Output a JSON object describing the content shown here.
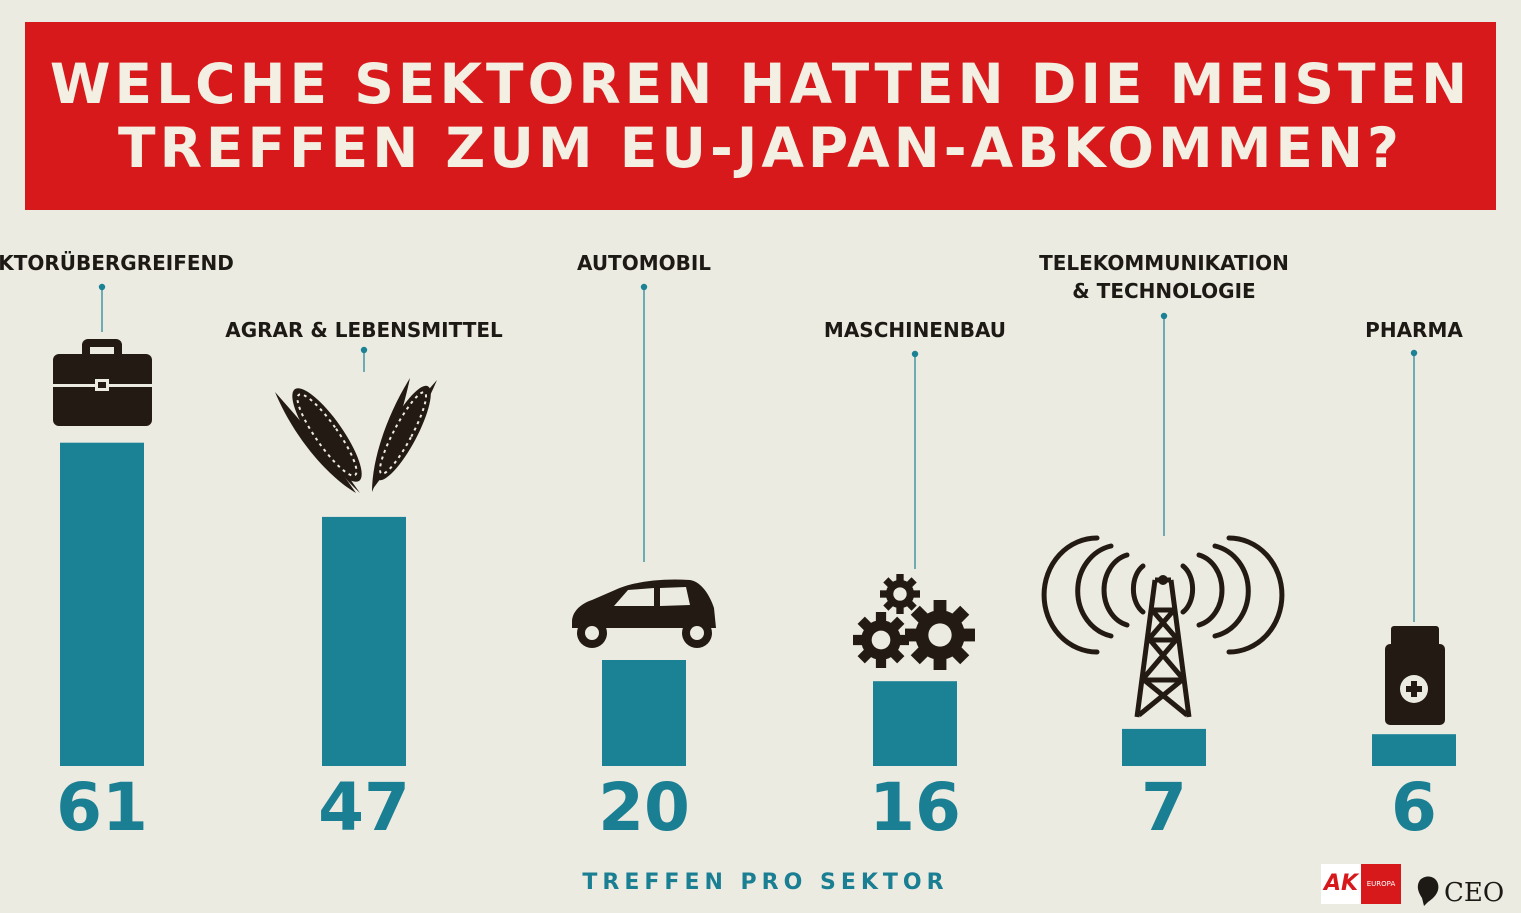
{
  "header": {
    "title_line1": "WELCHE SEKTOREN HATTEN DIE MEISTEN",
    "title_line2": "TREFFEN ZUM EU-JAPAN-ABKOMMEN?"
  },
  "chart_data": {
    "type": "bar",
    "title": "WELCHE SEKTOREN HATTEN DIE MEISTEN TREFFEN ZUM EU-JAPAN-ABKOMMEN?",
    "xlabel": "TREFFEN PRO SEKTOR",
    "ylabel": "",
    "categories": [
      [
        "SEKTORÜBERGREIFEND"
      ],
      [
        "AGRAR & LEBENSMITTEL"
      ],
      [
        "AUTOMOBIL"
      ],
      [
        "MASCHINENBAU"
      ],
      [
        "TELEKOMMUNIKATION",
        "& TECHNOLOGIE"
      ],
      [
        "PHARMA"
      ]
    ],
    "values": [
      61,
      47,
      20,
      16,
      7,
      6
    ],
    "icons": [
      "briefcase-icon",
      "corn-icon",
      "car-icon",
      "gears-icon",
      "radio-tower-icon",
      "medicine-bottle-icon"
    ],
    "colors": {
      "bar": "#1a8294",
      "value_text": "#1a7f92",
      "banner": "#d7191c",
      "icon": "#231b13",
      "background": "#ecebe2"
    },
    "grid": false,
    "legend": "none"
  },
  "logos": {
    "ak_text": "AK",
    "ak_sub": "EUROPA",
    "ceo_text": "CEO"
  }
}
